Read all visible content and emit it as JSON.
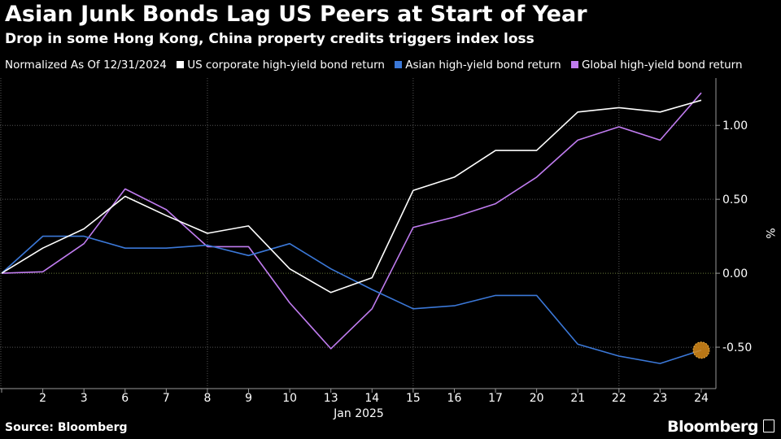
{
  "title": "Asian Junk Bonds Lag US Peers at Start of Year",
  "subtitle": "Drop in some Hong Kong, China property credits triggers index loss",
  "legend": {
    "note": "Normalized As Of 12/31/2024",
    "items": [
      {
        "label": "US corporate high-yield bond return",
        "color": "#ffffff"
      },
      {
        "label": "Asian high-yield bond return",
        "color": "#3b78d8"
      },
      {
        "label": "Global high-yield bond return",
        "color": "#c07cf0"
      }
    ]
  },
  "source": "Source: Bloomberg",
  "brand": "Bloomberg",
  "chart_data": {
    "type": "line",
    "xlabel": "Jan 2025",
    "ylabel": "%",
    "categories": [
      "12/31",
      "2",
      "3",
      "6",
      "7",
      "8",
      "9",
      "10",
      "13",
      "14",
      "15",
      "16",
      "17",
      "20",
      "21",
      "22",
      "23",
      "24"
    ],
    "x_tick_labels": [
      "",
      "2",
      "3",
      "6",
      "7",
      "8",
      "9",
      "10",
      "13",
      "14",
      "15",
      "16",
      "17",
      "20",
      "21",
      "22",
      "23",
      "24"
    ],
    "y_ticks": [
      -0.5,
      0.0,
      0.5,
      1.0
    ],
    "y_tick_labels": [
      "-0.50",
      "0.00",
      "0.50",
      "1.00"
    ],
    "ylim": [
      -0.78,
      1.32
    ],
    "series": [
      {
        "name": "US corporate high-yield bond return",
        "color": "#ffffff",
        "values": [
          0.0,
          0.17,
          0.3,
          0.52,
          0.39,
          0.27,
          0.32,
          0.03,
          -0.13,
          -0.03,
          0.56,
          0.65,
          0.83,
          0.83,
          1.09,
          1.12,
          1.09,
          1.17
        ]
      },
      {
        "name": "Asian high-yield bond return",
        "color": "#3b78d8",
        "values": [
          0.0,
          0.25,
          0.25,
          0.17,
          0.17,
          0.19,
          0.12,
          0.2,
          0.03,
          -0.11,
          -0.24,
          -0.22,
          -0.15,
          -0.15,
          -0.48,
          -0.56,
          -0.61,
          -0.52
        ]
      },
      {
        "name": "Global high-yield bond return",
        "color": "#c07cf0",
        "values": [
          0.0,
          0.01,
          0.2,
          0.57,
          0.43,
          0.18,
          0.18,
          -0.2,
          -0.51,
          -0.24,
          0.31,
          0.38,
          0.47,
          0.65,
          0.9,
          0.99,
          0.9,
          1.22
        ]
      }
    ],
    "highlight": {
      "series": "Asian high-yield bond return",
      "index": 17,
      "color": "#d98c1a"
    },
    "grid": true
  }
}
